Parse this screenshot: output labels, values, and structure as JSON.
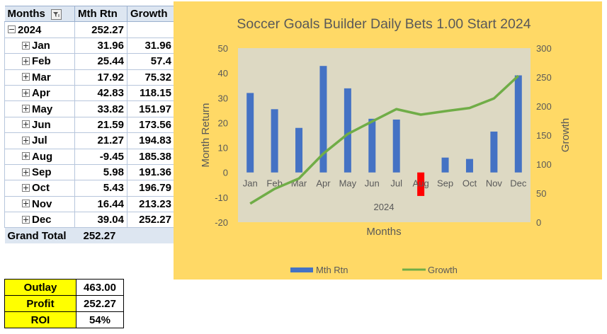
{
  "pivot": {
    "headers": [
      "Months",
      "Mth Rtn",
      "Growth"
    ],
    "year": {
      "label": "2024",
      "value": "252.27",
      "growth": ""
    },
    "rows": [
      {
        "month": "Jan",
        "mth_rtn": "31.96",
        "growth": "31.96"
      },
      {
        "month": "Feb",
        "mth_rtn": "25.44",
        "growth": "57.4"
      },
      {
        "month": "Mar",
        "mth_rtn": "17.92",
        "growth": "75.32"
      },
      {
        "month": "Apr",
        "mth_rtn": "42.83",
        "growth": "118.15"
      },
      {
        "month": "May",
        "mth_rtn": "33.82",
        "growth": "151.97"
      },
      {
        "month": "Jun",
        "mth_rtn": "21.59",
        "growth": "173.56"
      },
      {
        "month": "Jul",
        "mth_rtn": "21.27",
        "growth": "194.83"
      },
      {
        "month": "Aug",
        "mth_rtn": "-9.45",
        "growth": "185.38"
      },
      {
        "month": "Sep",
        "mth_rtn": "5.98",
        "growth": "191.36"
      },
      {
        "month": "Oct",
        "mth_rtn": "5.43",
        "growth": "196.79"
      },
      {
        "month": "Nov",
        "mth_rtn": "16.44",
        "growth": "213.23"
      },
      {
        "month": "Dec",
        "mth_rtn": "39.04",
        "growth": "252.27"
      }
    ],
    "grand_total": {
      "label": "Grand Total",
      "value": "252.27"
    }
  },
  "summary": [
    {
      "label": "Outlay",
      "value": "463.00"
    },
    {
      "label": "Profit",
      "value": "252.27"
    },
    {
      "label": "ROI",
      "value": "54%"
    }
  ],
  "colors": {
    "chart_bg": "#ffd966",
    "plot_bg": "#ddd9c3",
    "bar": "#4472c4",
    "bar_negative": "#ff0000",
    "line": "#70ad47",
    "header_fill": "#dde6f1",
    "summary_label_fill": "#ffff00"
  },
  "chart_data": {
    "type": "bar",
    "title": "Soccer Goals Builder Daily Bets 1.00 Start 2024",
    "xlabel": "Months",
    "xgroup_label": "2024",
    "ylabel": "Month Return",
    "y2label": "Growth",
    "categories": [
      "Jan",
      "Feb",
      "Mar",
      "Apr",
      "May",
      "Jun",
      "Jul",
      "Aug",
      "Sep",
      "Oct",
      "Nov",
      "Dec"
    ],
    "series": [
      {
        "name": "Mth Rtn",
        "type": "bar",
        "axis": "left",
        "values": [
          31.96,
          25.44,
          17.92,
          42.83,
          33.82,
          21.59,
          21.27,
          -9.45,
          5.98,
          5.43,
          16.44,
          39.04
        ]
      },
      {
        "name": "Growth",
        "type": "line",
        "axis": "right",
        "values": [
          31.96,
          57.4,
          75.32,
          118.15,
          151.97,
          173.56,
          194.83,
          185.38,
          191.36,
          196.79,
          213.23,
          252.27
        ]
      }
    ],
    "ylim": [
      -20,
      50
    ],
    "y2lim": [
      0,
      300
    ],
    "yticks": [
      "-20",
      "-10",
      "0",
      "10",
      "20",
      "30",
      "40",
      "50"
    ],
    "y2ticks": [
      "0",
      "50",
      "100",
      "150",
      "200",
      "250",
      "300"
    ],
    "legend_position": "bottom",
    "grid": false
  }
}
